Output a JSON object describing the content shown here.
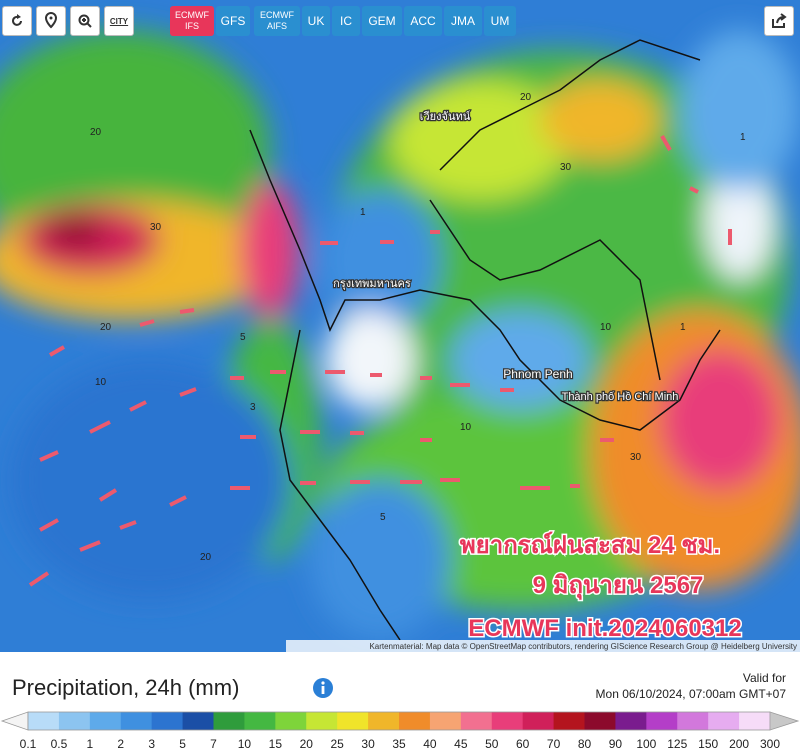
{
  "toolbar": {
    "city": "CITY",
    "models": [
      "ECMWF IFS",
      "GFS",
      "ECMWF AIFS",
      "UK",
      "IC",
      "GEM",
      "ACC",
      "JMA",
      "UM"
    ],
    "active": "ECMWF IFS"
  },
  "map": {
    "place_labels": [
      "กรุงเทพมหานคร",
      "Phnom Penh",
      "Thành phố Hồ Chí Minh",
      "เวียงจันทน์"
    ],
    "contour_labels": [
      "20",
      "30",
      "10",
      "5",
      "1",
      "20",
      "30",
      "10",
      "1",
      "3",
      "20",
      "10",
      "5",
      "30",
      "20",
      "1"
    ],
    "overlay": [
      "พยากรณ์ฝนสะสม 24 ชม.",
      "9 มิถุนายน 2567",
      "ECMWF init.2024060312"
    ],
    "attribution": "Kartenmaterial: Map data © OpenStreetMap contributors, rendering GIScience Research Group @ Heidelberg University"
  },
  "legend": {
    "title": "Precipitation, 24h (mm)",
    "valid_label": "Valid for",
    "valid_time": "Mon 06/10/2024, 07:00am GMT+07",
    "labels": [
      "0.1",
      "0.5",
      "1",
      "2",
      "3",
      "5",
      "7",
      "10",
      "15",
      "20",
      "25",
      "30",
      "35",
      "40",
      "45",
      "50",
      "60",
      "70",
      "80",
      "90",
      "100",
      "125",
      "150",
      "200",
      "300"
    ],
    "colors": [
      "#b8dcf8",
      "#8cc4f0",
      "#5eaaea",
      "#3f90e0",
      "#2c74d0",
      "#1b4fa6",
      "#2f9c3c",
      "#44b842",
      "#7ed43a",
      "#c6e634",
      "#f0e42a",
      "#f0b62a",
      "#f08c2a",
      "#f6a472",
      "#f27090",
      "#e83e7a",
      "#d0205a",
      "#b4141e",
      "#8c0a2c",
      "#7a1c8e",
      "#b43ec8",
      "#d278dc",
      "#e6acf0",
      "#f6dcf8"
    ]
  }
}
